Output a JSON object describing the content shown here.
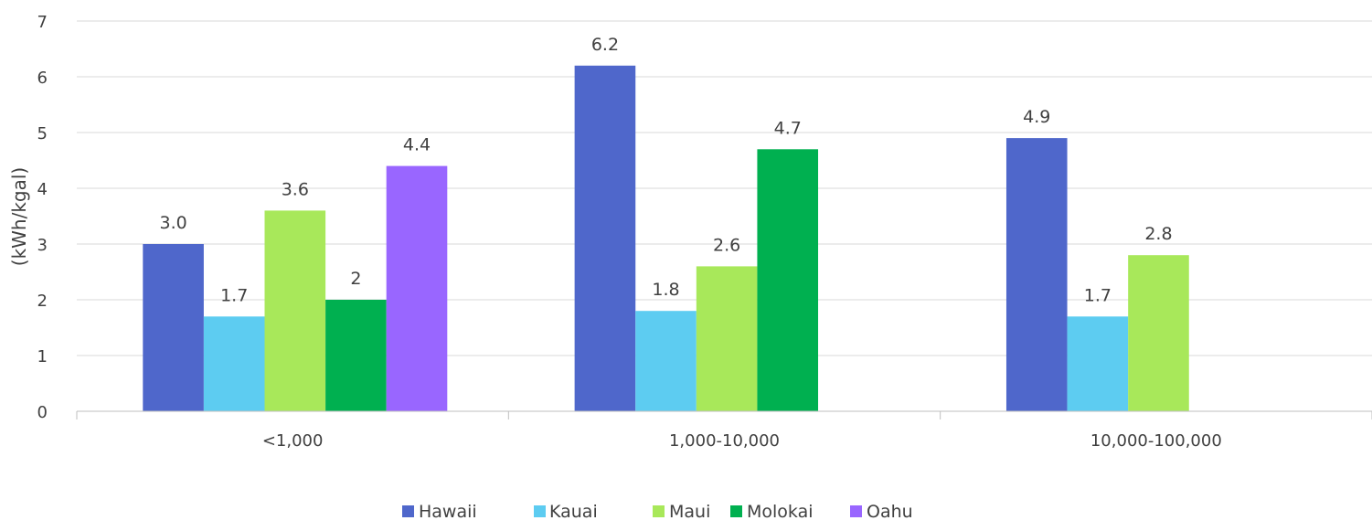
{
  "chart_data": {
    "type": "bar",
    "categories": [
      "<1,000",
      "1,000-10,000",
      "10,000-100,000"
    ],
    "ylabel": "(kWh/kgal)",
    "xlabel": "",
    "ylim": [
      0,
      7
    ],
    "yticks": [
      0,
      1,
      2,
      3,
      4,
      5,
      6,
      7
    ],
    "grid": true,
    "legend_position": "bottom",
    "series": [
      {
        "name": "Hawaii",
        "color": "#4F67CB",
        "values": [
          3.0,
          6.2,
          4.9
        ],
        "labels": [
          "3.0",
          "6.2",
          "4.9"
        ]
      },
      {
        "name": "Kauai",
        "color": "#5DCCF1",
        "values": [
          1.7,
          1.8,
          1.7
        ],
        "labels": [
          "1.7",
          "1.8",
          "1.7"
        ]
      },
      {
        "name": "Maui",
        "color": "#A8E85A",
        "values": [
          3.6,
          2.6,
          2.8
        ],
        "labels": [
          "3.6",
          "2.6",
          "2.8"
        ]
      },
      {
        "name": "Molokai",
        "color": "#00B050",
        "values": [
          2,
          4.7,
          null
        ],
        "labels": [
          "2",
          "4.7",
          ""
        ]
      },
      {
        "name": "Oahu",
        "color": "#9966FF",
        "values": [
          4.4,
          null,
          null
        ],
        "labels": [
          "4.4",
          "",
          ""
        ]
      }
    ]
  }
}
